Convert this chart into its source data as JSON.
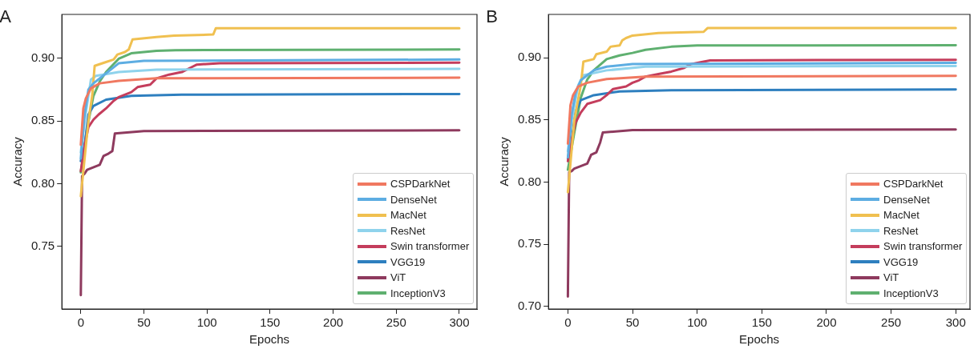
{
  "chart_data": [
    {
      "type": "line",
      "title": "A",
      "xlabel": "Epochs",
      "ylabel": "Accuracy",
      "xlim": [
        -15,
        314
      ],
      "xticks": [
        0,
        50,
        100,
        150,
        200,
        250,
        300
      ],
      "ylim": [
        0.7,
        0.935
      ],
      "yticks": [
        {
          "value": 0.75,
          "label": "0.75"
        },
        {
          "value": 0.8,
          "label": "0.80"
        },
        {
          "value": 0.85,
          "label": "0.85"
        },
        {
          "value": 0.9,
          "label": "0.90"
        }
      ],
      "grid": false,
      "legend": "bottom right",
      "marker": "none",
      "line_style": "solid",
      "series": [
        {
          "name": "CSPDarkNet",
          "color": "#f07860",
          "x": [
            0,
            2,
            4,
            8,
            15,
            30,
            60,
            300
          ],
          "values": [
            0.831,
            0.86,
            0.868,
            0.876,
            0.88,
            0.882,
            0.884,
            0.8845
          ]
        },
        {
          "name": "DenseNet",
          "color": "#5dade2",
          "x": [
            0,
            3,
            6,
            10,
            20,
            30,
            50,
            300
          ],
          "values": [
            0.82,
            0.855,
            0.875,
            0.88,
            0.888,
            0.896,
            0.898,
            0.899
          ]
        },
        {
          "name": "MacNet",
          "color": "#f0c050",
          "x": [
            0,
            3,
            6,
            9,
            11,
            20,
            26,
            29,
            35,
            38,
            41,
            60,
            74,
            105,
            107,
            300
          ],
          "values": [
            0.79,
            0.82,
            0.85,
            0.87,
            0.894,
            0.897,
            0.899,
            0.903,
            0.905,
            0.907,
            0.915,
            0.917,
            0.918,
            0.919,
            0.924,
            0.924
          ]
        },
        {
          "name": "ResNet",
          "color": "#8fd3ec",
          "x": [
            0,
            3,
            8,
            12,
            30,
            60,
            300
          ],
          "values": [
            0.825,
            0.85,
            0.883,
            0.886,
            0.889,
            0.891,
            0.8915
          ]
        },
        {
          "name": "Swin transformer",
          "color": "#c43d5c",
          "x": [
            0,
            3,
            6,
            10,
            14,
            20,
            26,
            30,
            40,
            45,
            55,
            60,
            70,
            80,
            88,
            92,
            110,
            300
          ],
          "values": [
            0.81,
            0.83,
            0.845,
            0.851,
            0.855,
            0.86,
            0.866,
            0.869,
            0.873,
            0.877,
            0.879,
            0.884,
            0.887,
            0.889,
            0.893,
            0.895,
            0.896,
            0.8965
          ]
        },
        {
          "name": "VGG19",
          "color": "#2e7fbf",
          "x": [
            0,
            3,
            6,
            10,
            20,
            40,
            80,
            300
          ],
          "values": [
            0.818,
            0.83,
            0.855,
            0.862,
            0.867,
            0.87,
            0.871,
            0.8715
          ]
        },
        {
          "name": "ViT",
          "color": "#8e3a5e",
          "x": [
            0,
            1,
            3,
            5,
            15,
            18,
            22,
            25,
            27,
            50,
            300
          ],
          "values": [
            0.711,
            0.806,
            0.808,
            0.811,
            0.815,
            0.822,
            0.824,
            0.826,
            0.84,
            0.842,
            0.8425
          ]
        },
        {
          "name": "InceptionV3",
          "color": "#5fb070",
          "x": [
            0,
            5,
            10,
            15,
            20,
            30,
            40,
            60,
            75,
            300
          ],
          "values": [
            0.809,
            0.844,
            0.87,
            0.8815,
            0.889,
            0.8996,
            0.904,
            0.906,
            0.9065,
            0.907
          ]
        }
      ]
    },
    {
      "type": "line",
      "title": "B",
      "xlabel": "Epochs",
      "ylabel": "Accuracy",
      "xlim": [
        -15,
        311
      ],
      "xticks": [
        0,
        50,
        100,
        150,
        200,
        250,
        300
      ],
      "ylim": [
        0.698,
        0.935
      ],
      "yticks": [
        {
          "value": 0.7,
          "label": "0.70"
        },
        {
          "value": 0.75,
          "label": "0.75"
        },
        {
          "value": 0.8,
          "label": "0.80"
        },
        {
          "value": 0.85,
          "label": "0.85"
        },
        {
          "value": 0.9,
          "label": "0.90"
        }
      ],
      "grid": false,
      "legend": "bottom right",
      "marker": "none",
      "line_style": "solid",
      "series": [
        {
          "name": "CSPDarkNet",
          "color": "#f07860",
          "x": [
            0,
            2,
            4,
            8,
            15,
            30,
            60,
            300
          ],
          "values": [
            0.831,
            0.862,
            0.87,
            0.877,
            0.88,
            0.883,
            0.885,
            0.8855
          ]
        },
        {
          "name": "DenseNet",
          "color": "#5dade2",
          "x": [
            0,
            3,
            6,
            10,
            20,
            30,
            50,
            300
          ],
          "values": [
            0.82,
            0.855,
            0.872,
            0.882,
            0.89,
            0.893,
            0.895,
            0.896
          ]
        },
        {
          "name": "MacNet",
          "color": "#f0c050",
          "x": [
            0,
            5,
            10,
            12,
            20,
            22,
            30,
            33,
            40,
            42,
            45,
            50,
            70,
            105,
            108,
            300
          ],
          "values": [
            0.792,
            0.85,
            0.878,
            0.897,
            0.899,
            0.903,
            0.905,
            0.909,
            0.91,
            0.914,
            0.916,
            0.918,
            0.92,
            0.921,
            0.924,
            0.924
          ]
        },
        {
          "name": "ResNet",
          "color": "#8fd3ec",
          "x": [
            0,
            3,
            8,
            12,
            30,
            60,
            300
          ],
          "values": [
            0.825,
            0.85,
            0.878,
            0.886,
            0.89,
            0.893,
            0.8935
          ]
        },
        {
          "name": "Swin transformer",
          "color": "#c43d5c",
          "x": [
            0,
            3,
            6,
            10,
            15,
            25,
            30,
            35,
            45,
            50,
            55,
            60,
            70,
            80,
            90,
            95,
            105,
            110,
            300
          ],
          "values": [
            0.817,
            0.835,
            0.848,
            0.856,
            0.863,
            0.866,
            0.87,
            0.875,
            0.877,
            0.88,
            0.882,
            0.885,
            0.887,
            0.889,
            0.892,
            0.895,
            0.897,
            0.898,
            0.8985
          ]
        },
        {
          "name": "VGG19",
          "color": "#2e7fbf",
          "x": [
            0,
            3,
            6,
            10,
            20,
            40,
            80,
            300
          ],
          "values": [
            0.819,
            0.835,
            0.857,
            0.866,
            0.87,
            0.873,
            0.874,
            0.8746
          ]
        },
        {
          "name": "ViT",
          "color": "#8e3a5e",
          "x": [
            0,
            1,
            3,
            5,
            15,
            18,
            22,
            25,
            27,
            50,
            300
          ],
          "values": [
            0.708,
            0.808,
            0.809,
            0.811,
            0.815,
            0.822,
            0.824,
            0.832,
            0.84,
            0.842,
            0.8424
          ]
        },
        {
          "name": "InceptionV3",
          "color": "#5fb070",
          "x": [
            0,
            5,
            10,
            15,
            20,
            30,
            40,
            50,
            60,
            80,
            100,
            300
          ],
          "values": [
            0.81,
            0.84,
            0.868,
            0.8826,
            0.89,
            0.899,
            0.902,
            0.904,
            0.9065,
            0.909,
            0.91,
            0.9102
          ]
        }
      ]
    }
  ]
}
